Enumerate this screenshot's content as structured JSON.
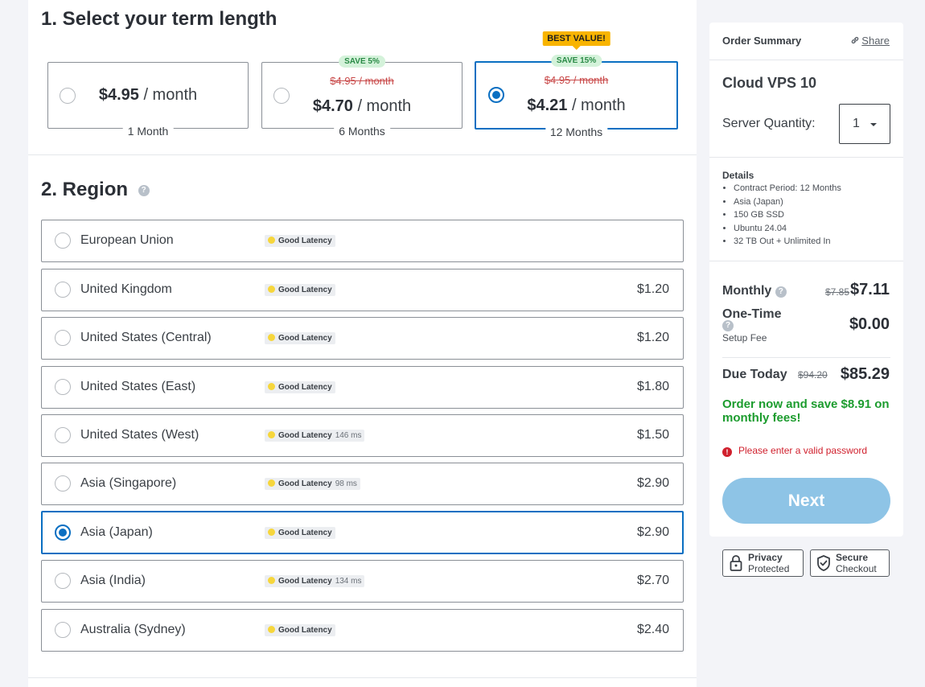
{
  "term": {
    "title": "1. Select your term length",
    "options": [
      {
        "price": "$4.95",
        "per": " / month",
        "old_price": "",
        "save": "",
        "best": "",
        "label": "1 Month",
        "selected": false
      },
      {
        "price": "$4.70",
        "per": " / month",
        "old_price": "$4.95 / month",
        "save": "SAVE 5%",
        "best": "",
        "label": "6 Months",
        "selected": false
      },
      {
        "price": "$4.21",
        "per": " / month",
        "old_price": "$4.95 / month",
        "save": "SAVE 15%",
        "best": "BEST VALUE!",
        "label": "12 Months",
        "selected": true
      }
    ]
  },
  "region": {
    "title": "2. Region",
    "help_glyph": "?",
    "latency_label": "Good Latency",
    "rows": [
      {
        "name": "European Union",
        "ms": "",
        "price": "",
        "selected": false
      },
      {
        "name": "United Kingdom",
        "ms": "",
        "price": "$1.20",
        "selected": false
      },
      {
        "name": "United States (Central)",
        "ms": "",
        "price": "$1.20",
        "selected": false
      },
      {
        "name": "United States (East)",
        "ms": "",
        "price": "$1.80",
        "selected": false
      },
      {
        "name": "United States (West)",
        "ms": "146 ms",
        "price": "$1.50",
        "selected": false
      },
      {
        "name": "Asia (Singapore)",
        "ms": "98 ms",
        "price": "$2.90",
        "selected": false
      },
      {
        "name": "Asia (Japan)",
        "ms": "",
        "price": "$2.90",
        "selected": true
      },
      {
        "name": "Asia (India)",
        "ms": "134 ms",
        "price": "$2.70",
        "selected": false
      },
      {
        "name": "Australia (Sydney)",
        "ms": "",
        "price": "$2.40",
        "selected": false
      }
    ]
  },
  "summary": {
    "title": "Order Summary",
    "share_label": "Share",
    "product": "Cloud VPS 10",
    "quantity_label": "Server Quantity:",
    "quantity_value": "1",
    "details_title": "Details",
    "details": [
      "Contract Period: 12 Months",
      "Asia (Japan)",
      "150 GB SSD",
      "Ubuntu 24.04",
      "32 TB Out + Unlimited In"
    ],
    "monthly_label": "Monthly",
    "monthly_old": "$7.85",
    "monthly_new": "$7.11",
    "onetime_label": "One-Time",
    "setup_fee_label": "Setup Fee",
    "onetime_price": "$0.00",
    "due_label": "Due Today",
    "due_old": "$94.20",
    "due_new": "$85.29",
    "save_message": "Order now and save $8.91 on monthly fees!",
    "error_glyph": "!",
    "error_message": "Please enter a valid password",
    "next_label": "Next"
  },
  "trust": [
    {
      "line1": "Privacy",
      "line2": "Protected",
      "icon": "lock-icon"
    },
    {
      "line1": "Secure",
      "line2": "Checkout",
      "icon": "shield-check-icon"
    }
  ],
  "colors": {
    "accent": "#0a6fc2",
    "next_button": "#8ec4e6",
    "save_green": "#1c9c2e",
    "error_red": "#d0202d",
    "best_value_badge": "#f8b400"
  }
}
